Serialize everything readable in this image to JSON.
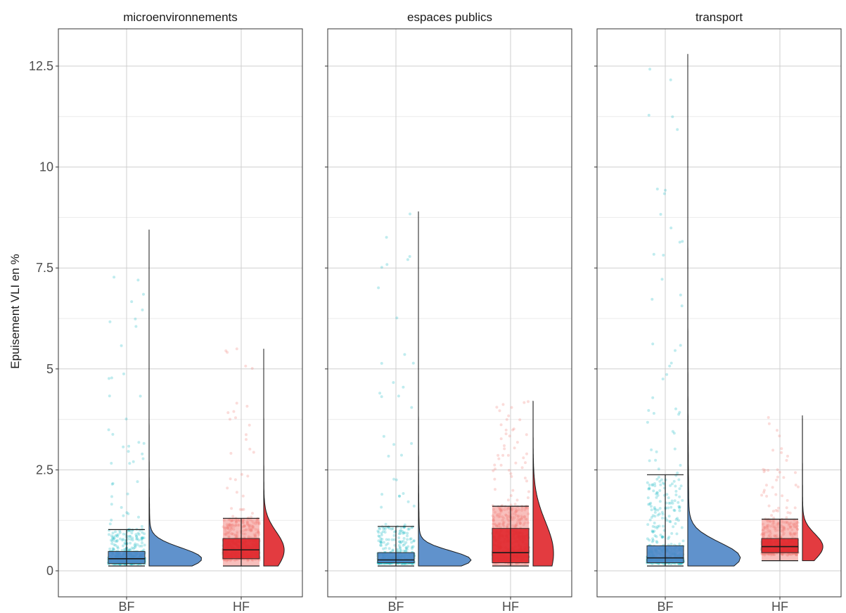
{
  "chart_data": {
    "type": "raincloud",
    "ylabel": "Epuisement VLI en %",
    "xlabel": "",
    "ylim": [
      -0.7,
      13.5
    ],
    "yticks": [
      0,
      2.5,
      5,
      7.5,
      10,
      12.5
    ],
    "ytick_labels": [
      "0",
      "2.5",
      "5",
      "7.5",
      "10",
      "12.5"
    ],
    "grid": true,
    "categories": [
      "BF",
      "HF"
    ],
    "colors": {
      "BF_points": "#1cbcc7",
      "HF_points": "#f2837a",
      "BF_fill": "#4f86c6",
      "HF_fill": "#e0262b",
      "HF_box_outer": "#f0726a"
    },
    "panels": [
      {
        "title": "microenvironnements",
        "groups": [
          {
            "category": "BF",
            "min": 0.12,
            "q1": 0.18,
            "median": 0.3,
            "q3": 0.48,
            "whisker_high": 1.02,
            "max": 8.45,
            "box_upper": 1.02
          },
          {
            "category": "HF",
            "min": 0.12,
            "q1": 0.3,
            "median": 0.52,
            "q3": 0.8,
            "whisker_high": 1.3,
            "max": 5.5,
            "box_upper": 1.3
          }
        ]
      },
      {
        "title": "espaces publics",
        "groups": [
          {
            "category": "BF",
            "min": 0.12,
            "q1": 0.2,
            "median": 0.27,
            "q3": 0.45,
            "whisker_high": 1.1,
            "max": 8.9,
            "box_upper": 1.1
          },
          {
            "category": "HF",
            "min": 0.12,
            "q1": 0.2,
            "median": 0.45,
            "q3": 1.05,
            "whisker_high": 1.6,
            "max": 4.2,
            "box_upper": 1.6
          }
        ]
      },
      {
        "title": "transport",
        "groups": [
          {
            "category": "BF",
            "min": 0.12,
            "q1": 0.2,
            "median": 0.32,
            "q3": 0.62,
            "whisker_high": 2.38,
            "max": 12.8,
            "box_upper": 2.38
          },
          {
            "category": "HF",
            "min": 0.25,
            "q1": 0.45,
            "median": 0.6,
            "q3": 0.8,
            "whisker_high": 1.28,
            "max": 3.85,
            "box_upper": 1.28
          }
        ]
      }
    ]
  }
}
